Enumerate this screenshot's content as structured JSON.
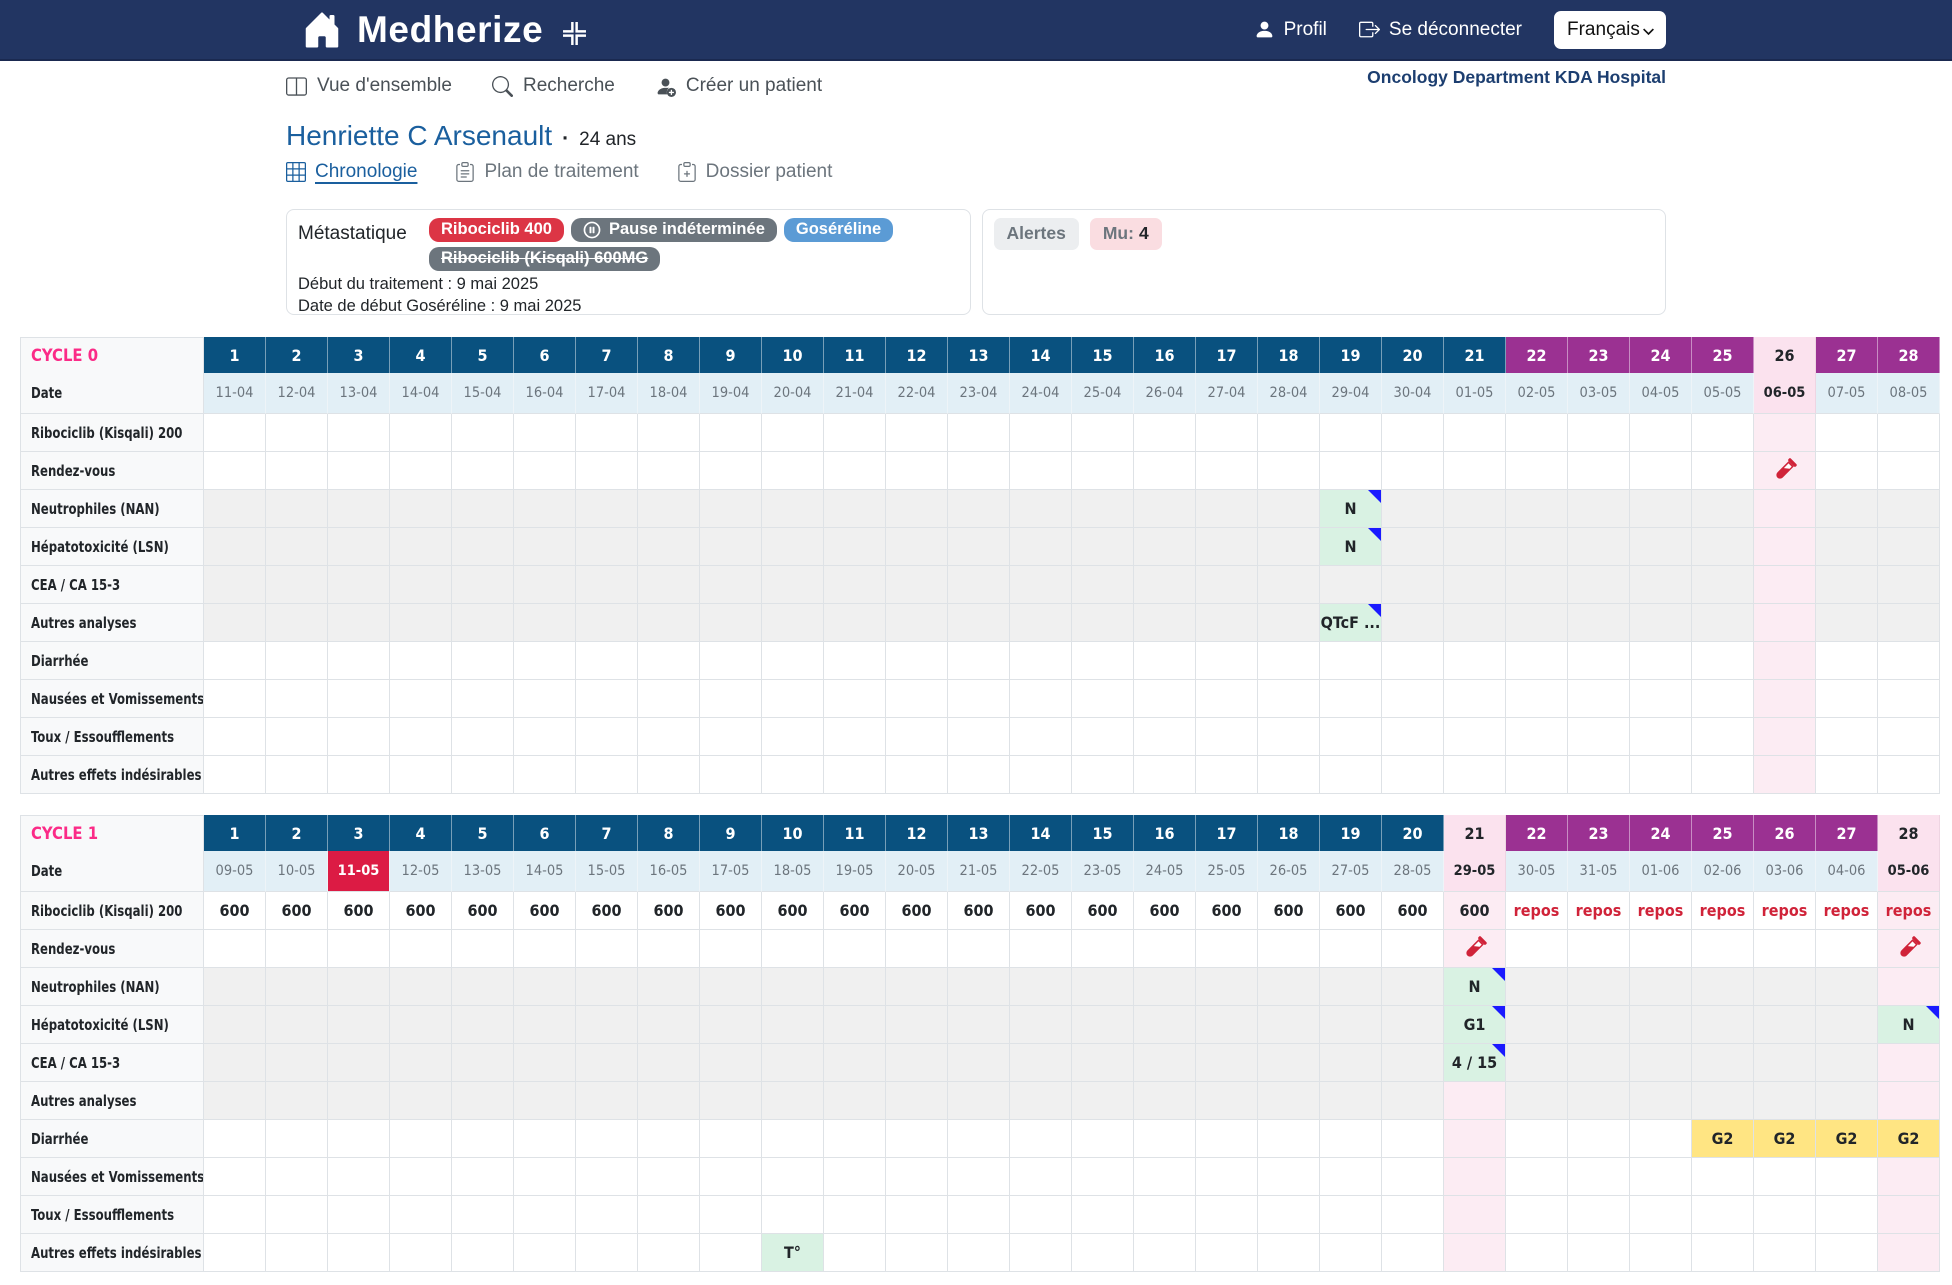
{
  "colors": {
    "navbar": "#223562",
    "day_navy": "#09517f",
    "day_purple": "#9b3192",
    "pink_header": "#fbe2ee",
    "pink_cell": "#fcecf3",
    "today_red": "#dc1b44",
    "repos_red": "#d02339",
    "lab_green": "#d9f2e3",
    "effect_yellow": "#ffe583",
    "cycle_pink": "#fb2b87",
    "link_blue": "#1a5f9e",
    "note_blue": "#1a1aff"
  },
  "navbar": {
    "brand": "Medherize",
    "profile": "Profil",
    "logout": "Se déconnecter",
    "language": "Français"
  },
  "nav": {
    "items": [
      {
        "id": "overview",
        "label": "Vue d'ensemble",
        "icon": "columns-icon"
      },
      {
        "id": "search",
        "label": "Recherche",
        "icon": "search-icon"
      },
      {
        "id": "create-patient",
        "label": "Créer un patient",
        "icon": "person-plus-icon"
      }
    ],
    "department": "Oncology Department KDA Hospital"
  },
  "patient": {
    "name": "Henriette C Arsenault",
    "separator": "·",
    "age": "24 ans"
  },
  "tabs": [
    {
      "id": "chronologie",
      "label": "Chronologie",
      "icon": "grid-icon",
      "active": true
    },
    {
      "id": "plan-traitement",
      "label": "Plan de traitement",
      "icon": "clipboard-list-icon",
      "active": false
    },
    {
      "id": "dossier-patient",
      "label": "Dossier patient",
      "icon": "clipboard-plus-icon",
      "active": false
    }
  ],
  "treatment": {
    "status": "Métastatique",
    "badge_rows": [
      [
        {
          "label": "Ribociclib 400",
          "style": "red"
        },
        {
          "label": "Pause indéterminée",
          "style": "gray",
          "icon": "pause-circle-icon"
        },
        {
          "label": "Goséréline",
          "style": "blue"
        }
      ],
      [
        {
          "label": "Ribociclib (Kisqali) 600MG",
          "style": "gray",
          "strike": true
        }
      ]
    ],
    "start_line": "Début du traitement : 9 mai 2025",
    "goserelin_line": "Date de début Goséréline : 9 mai 2025"
  },
  "alerts": {
    "title": "Alertes",
    "mu_label": "Mu:",
    "mu_value": "4"
  },
  "grid": {
    "date_label": "Date",
    "rows": [
      {
        "key": "ribociclib",
        "label": "Ribociclib (Kisqali) 200",
        "shade": false
      },
      {
        "key": "rendezvous",
        "label": "Rendez-vous",
        "shade": false
      },
      {
        "key": "neutrophiles",
        "label": "Neutrophiles (NAN)",
        "shade": true
      },
      {
        "key": "hepatotoxicite",
        "label": "Hépatotoxicité (LSN)",
        "shade": true
      },
      {
        "key": "cea",
        "label": "CEA / CA 15-3",
        "shade": true
      },
      {
        "key": "autres_analyses",
        "label": "Autres analyses",
        "shade": true
      },
      {
        "key": "diarrhee",
        "label": "Diarrhée",
        "shade": false
      },
      {
        "key": "nausees",
        "label": "Nausées et Vomissements",
        "shade": false
      },
      {
        "key": "toux",
        "label": "Toux / Essoufflements",
        "shade": false
      },
      {
        "key": "autres_effets",
        "label": "Autres effets indésirables",
        "shade": false
      }
    ],
    "cycles": [
      {
        "title": "CYCLE 0",
        "days": [
          "1",
          "2",
          "3",
          "4",
          "5",
          "6",
          "7",
          "8",
          "9",
          "10",
          "11",
          "12",
          "13",
          "14",
          "15",
          "16",
          "17",
          "18",
          "19",
          "20",
          "21",
          "22",
          "23",
          "24",
          "25",
          "26",
          "27",
          "28"
        ],
        "dates": [
          "11-04",
          "12-04",
          "13-04",
          "14-04",
          "15-04",
          "16-04",
          "17-04",
          "18-04",
          "19-04",
          "20-04",
          "21-04",
          "22-04",
          "23-04",
          "24-04",
          "25-04",
          "26-04",
          "27-04",
          "28-04",
          "29-04",
          "30-04",
          "01-05",
          "02-05",
          "03-05",
          "04-05",
          "05-05",
          "06-05",
          "07-05",
          "08-05"
        ],
        "purple_from": 22,
        "pink_days": [
          26
        ],
        "today_day": null,
        "marks": {
          "rendezvous": [
            {
              "days": [
                26
              ],
              "type": "appointment",
              "icon": "blood-test-icon"
            }
          ],
          "neutrophiles": [
            {
              "days": [
                19
              ],
              "type": "lab",
              "value": "N",
              "note": true
            }
          ],
          "hepatotoxicite": [
            {
              "days": [
                19
              ],
              "type": "lab",
              "value": "N",
              "note": true
            }
          ],
          "autres_analyses": [
            {
              "days": [
                19
              ],
              "type": "lab",
              "value": "QTcF ...",
              "note": true
            }
          ]
        }
      },
      {
        "title": "CYCLE 1",
        "days": [
          "1",
          "2",
          "3",
          "4",
          "5",
          "6",
          "7",
          "8",
          "9",
          "10",
          "11",
          "12",
          "13",
          "14",
          "15",
          "16",
          "17",
          "18",
          "19",
          "20",
          "21",
          "22",
          "23",
          "24",
          "25",
          "26",
          "27",
          "28"
        ],
        "dates": [
          "09-05",
          "10-05",
          "11-05",
          "12-05",
          "13-05",
          "14-05",
          "15-05",
          "16-05",
          "17-05",
          "18-05",
          "19-05",
          "20-05",
          "21-05",
          "22-05",
          "23-05",
          "24-05",
          "25-05",
          "26-05",
          "27-05",
          "28-05",
          "29-05",
          "30-05",
          "31-05",
          "01-06",
          "02-06",
          "03-06",
          "04-06",
          "05-06"
        ],
        "purple_from": 22,
        "pink_days": [
          21,
          28
        ],
        "today_day": 3,
        "marks": {
          "ribociclib": [
            {
              "days": [
                1,
                2,
                3,
                4,
                5,
                6,
                7,
                8,
                9,
                10,
                11,
                12,
                13,
                14,
                15,
                16,
                17,
                18,
                19,
                20,
                21
              ],
              "type": "dose",
              "value": "600"
            },
            {
              "days": [
                22,
                23,
                24,
                25,
                26,
                27,
                28
              ],
              "type": "repos",
              "value": "repos"
            }
          ],
          "rendezvous": [
            {
              "days": [
                21,
                28
              ],
              "type": "appointment",
              "icon": "blood-test-icon"
            }
          ],
          "neutrophiles": [
            {
              "days": [
                21
              ],
              "type": "lab",
              "value": "N",
              "note": true
            }
          ],
          "hepatotoxicite": [
            {
              "days": [
                21
              ],
              "type": "lab",
              "value": "G1",
              "note": true
            },
            {
              "days": [
                28
              ],
              "type": "lab",
              "value": "N",
              "note": true
            }
          ],
          "cea": [
            {
              "days": [
                21
              ],
              "type": "lab",
              "value": "4 / 15",
              "note": true
            }
          ],
          "diarrhee": [
            {
              "days": [
                25,
                26,
                27,
                28
              ],
              "type": "effect",
              "value": "G2"
            }
          ],
          "autres_effets": [
            {
              "days": [
                10
              ],
              "type": "lab",
              "value": "T°",
              "note": false
            }
          ]
        }
      }
    ]
  }
}
